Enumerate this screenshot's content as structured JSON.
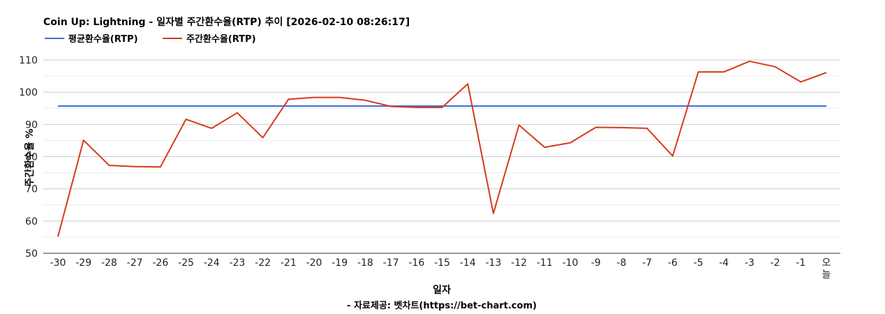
{
  "chart_data": {
    "type": "line",
    "title": "Coin Up: Lightning - 일자별 주간환수율(RTP) 추이 [2026-02-10 08:26:17]",
    "xlabel": "일자",
    "ylabel": "주간환수율 %",
    "source": "- 자료제공: 벳차트(https://bet-chart.com)",
    "categories": [
      "-30",
      "-29",
      "-28",
      "-27",
      "-26",
      "-25",
      "-24",
      "-23",
      "-22",
      "-21",
      "-20",
      "-19",
      "-18",
      "-17",
      "-16",
      "-15",
      "-14",
      "-13",
      "-12",
      "-11",
      "-10",
      "-9",
      "-8",
      "-7",
      "-6",
      "-5",
      "-4",
      "-3",
      "-2",
      "-1",
      "오늘"
    ],
    "ylim": [
      50,
      110
    ],
    "yticks": [
      50,
      60,
      70,
      80,
      90,
      100,
      110
    ],
    "grid": true,
    "legend_position": "top-left",
    "series": [
      {
        "name": "평균환수율(RTP)",
        "color": "#3b6fd6",
        "values": [
          95.7,
          95.7,
          95.7,
          95.7,
          95.7,
          95.7,
          95.7,
          95.7,
          95.7,
          95.7,
          95.7,
          95.7,
          95.7,
          95.7,
          95.7,
          95.7,
          95.7,
          95.7,
          95.7,
          95.7,
          95.7,
          95.7,
          95.7,
          95.7,
          95.7,
          95.7,
          95.7,
          95.7,
          95.7,
          95.7,
          95.7
        ]
      },
      {
        "name": "주간환수율(RTP)",
        "color": "#d6391e",
        "values": [
          55.2,
          85.1,
          77.3,
          76.9,
          76.8,
          91.6,
          88.8,
          93.6,
          85.9,
          97.8,
          98.4,
          98.4,
          97.5,
          95.6,
          95.3,
          95.3,
          102.6,
          62.4,
          89.8,
          82.9,
          84.3,
          89.1,
          89.0,
          88.8,
          80.2,
          106.3,
          106.3,
          109.6,
          107.9,
          103.2,
          106.1
        ]
      }
    ]
  }
}
